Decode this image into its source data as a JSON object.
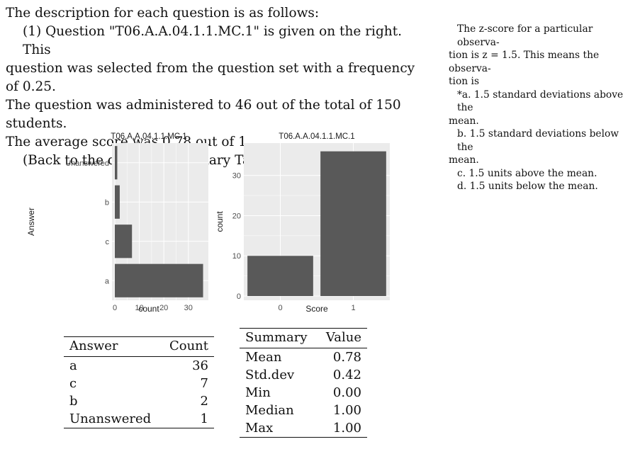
{
  "description": {
    "heading": "The description for each question is as follows:",
    "line1": "(1) Question \"T06.A.A.04.1.1.MC.1\" is given on the right. This",
    "line2": "question was selected from the question set with a frequency of 0.25.",
    "line3": "The question was administered to 46 out of the total of 150 students.",
    "line4": "The average score was 0.78 out of 1.",
    "back_link": "(Back to the question summary Table 7.)"
  },
  "question": {
    "stem_l1": "The z-score for a particular observa-",
    "stem_l2": "tion is z = 1.5. This means the observa-",
    "stem_l3": "tion is",
    "opt_a_l1": "*a. 1.5 standard deviations above the",
    "opt_a_l2": "mean.",
    "opt_b_l1": "b. 1.5 standard deviations below the",
    "opt_b_l2": "mean.",
    "opt_c": "c. 1.5 units above the mean.",
    "opt_d": "d. 1.5 units below the mean."
  },
  "colors": {
    "panel": "#ebebeb",
    "grid": "#ffffff",
    "bar": "#595959"
  },
  "chart_data": [
    {
      "type": "bar",
      "orientation": "horizontal",
      "title": "T06.A.A.04.1.1.MC.1",
      "categories": [
        "Unanswered",
        "b",
        "c",
        "a"
      ],
      "values": [
        1,
        2,
        7,
        36
      ],
      "xlabel": "count",
      "ylabel": "Answer",
      "xticks": [
        "0",
        "10",
        "20",
        "30"
      ],
      "xlim": [
        0,
        37
      ]
    },
    {
      "type": "bar",
      "title": "T06.A.A.04.1.1.MC.1",
      "categories": [
        "0",
        "1"
      ],
      "values": [
        10,
        36
      ],
      "xlabel": "Score",
      "ylabel": "count",
      "yticks": [
        "0",
        "10",
        "20",
        "30"
      ],
      "ylim": [
        0,
        37
      ]
    }
  ],
  "answer_table": {
    "headers": [
      "Answer",
      "Count"
    ],
    "rows": [
      [
        "a",
        "36"
      ],
      [
        "c",
        "7"
      ],
      [
        "b",
        "2"
      ],
      [
        "Unanswered",
        "1"
      ]
    ]
  },
  "summary_table": {
    "headers": [
      "Summary",
      "Value"
    ],
    "rows": [
      [
        "Mean",
        "0.78"
      ],
      [
        "Std.dev",
        "0.42"
      ],
      [
        "Min",
        "0.00"
      ],
      [
        "Median",
        "1.00"
      ],
      [
        "Max",
        "1.00"
      ]
    ]
  }
}
